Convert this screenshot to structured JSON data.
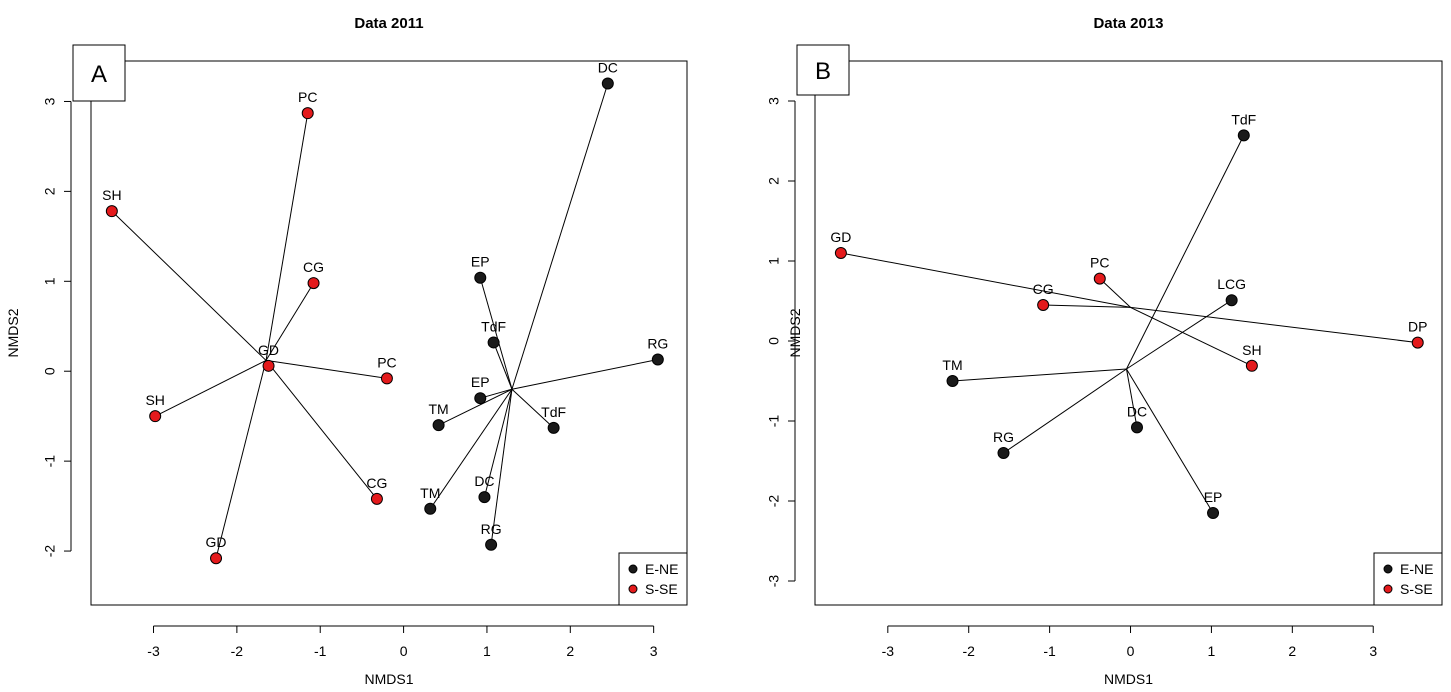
{
  "colors": {
    "E-NE": "#1a1a1a",
    "S-SE": "#e41a1c",
    "line": "#000000"
  },
  "chart_data": [
    {
      "type": "scatter",
      "panel_label": "A",
      "title": "Data 2011",
      "xlabel": "NMDS1",
      "ylabel": "NMDS2",
      "xlim": [
        -3.75,
        3.4
      ],
      "ylim": [
        -2.6,
        3.45
      ],
      "xticks": [
        -3,
        -2,
        -1,
        0,
        1,
        2,
        3
      ],
      "yticks": [
        -2,
        -1,
        0,
        1,
        2,
        3
      ],
      "legend": {
        "position": "bottom-right",
        "entries": [
          "E-NE",
          "S-SE"
        ]
      },
      "centroids": [
        {
          "group": "S-SE",
          "x": -1.65,
          "y": 0.12
        },
        {
          "group": "E-NE",
          "x": 1.3,
          "y": -0.2
        }
      ],
      "points": [
        {
          "label": "SH",
          "x": -3.5,
          "y": 1.78,
          "group": "S-SE",
          "centroid": 0
        },
        {
          "label": "PC",
          "x": -1.15,
          "y": 2.87,
          "group": "S-SE",
          "centroid": 0
        },
        {
          "label": "CG",
          "x": -1.08,
          "y": 0.98,
          "group": "S-SE",
          "centroid": 0
        },
        {
          "label": "GD",
          "x": -1.62,
          "y": 0.06,
          "group": "S-SE",
          "centroid": 0
        },
        {
          "label": "PC",
          "x": -0.2,
          "y": -0.08,
          "group": "S-SE",
          "centroid": 0
        },
        {
          "label": "SH",
          "x": -2.98,
          "y": -0.5,
          "group": "S-SE",
          "centroid": 0
        },
        {
          "label": "CG",
          "x": -0.32,
          "y": -1.42,
          "group": "S-SE",
          "centroid": 0
        },
        {
          "label": "GD",
          "x": -2.25,
          "y": -2.08,
          "group": "S-SE",
          "centroid": 0
        },
        {
          "label": "DC",
          "x": 2.45,
          "y": 3.2,
          "group": "E-NE",
          "centroid": 1
        },
        {
          "label": "EP",
          "x": 0.92,
          "y": 1.04,
          "group": "E-NE",
          "centroid": 1
        },
        {
          "label": "TdF",
          "x": 1.08,
          "y": 0.32,
          "group": "E-NE",
          "centroid": 1
        },
        {
          "label": "RG",
          "x": 3.05,
          "y": 0.13,
          "group": "E-NE",
          "centroid": 1
        },
        {
          "label": "EP",
          "x": 0.92,
          "y": -0.3,
          "group": "E-NE",
          "centroid": 1
        },
        {
          "label": "TM",
          "x": 0.42,
          "y": -0.6,
          "group": "E-NE",
          "centroid": 1
        },
        {
          "label": "TdF",
          "x": 1.8,
          "y": -0.63,
          "group": "E-NE",
          "centroid": 1
        },
        {
          "label": "DC",
          "x": 0.97,
          "y": -1.4,
          "group": "E-NE",
          "centroid": 1
        },
        {
          "label": "TM",
          "x": 0.32,
          "y": -1.53,
          "group": "E-NE",
          "centroid": 1
        },
        {
          "label": "RG",
          "x": 1.05,
          "y": -1.93,
          "group": "E-NE",
          "centroid": 1
        }
      ]
    },
    {
      "type": "scatter",
      "panel_label": "B",
      "title": "Data 2013",
      "xlabel": "NMDS1",
      "ylabel": "NMDS2",
      "xlim": [
        -3.9,
        3.85
      ],
      "ylim": [
        -3.3,
        3.5
      ],
      "xticks": [
        -3,
        -2,
        -1,
        0,
        1,
        2,
        3
      ],
      "yticks": [
        -3,
        -2,
        -1,
        0,
        1,
        2,
        3
      ],
      "legend": {
        "position": "bottom-right",
        "entries": [
          "E-NE",
          "S-SE"
        ]
      },
      "centroids": [
        {
          "group": "S-SE",
          "x": 0.0,
          "y": 0.42
        },
        {
          "group": "E-NE",
          "x": -0.05,
          "y": -0.35
        }
      ],
      "points": [
        {
          "label": "GD",
          "x": -3.58,
          "y": 1.1,
          "group": "S-SE",
          "centroid": 0
        },
        {
          "label": "PC",
          "x": -0.38,
          "y": 0.78,
          "group": "S-SE",
          "centroid": 0
        },
        {
          "label": "CG",
          "x": -1.08,
          "y": 0.45,
          "group": "S-SE",
          "centroid": 0
        },
        {
          "label": "SH",
          "x": 1.5,
          "y": -0.31,
          "group": "S-SE",
          "centroid": 0
        },
        {
          "label": "DP",
          "x": 3.55,
          "y": -0.02,
          "group": "S-SE",
          "centroid": 0
        },
        {
          "label": "TdF",
          "x": 1.4,
          "y": 2.57,
          "group": "E-NE",
          "centroid": 1
        },
        {
          "label": "LCG",
          "x": 1.25,
          "y": 0.51,
          "group": "E-NE",
          "centroid": 1
        },
        {
          "label": "TM",
          "x": -2.2,
          "y": -0.5,
          "group": "E-NE",
          "centroid": 1
        },
        {
          "label": "DC",
          "x": 0.08,
          "y": -1.08,
          "group": "E-NE",
          "centroid": 1
        },
        {
          "label": "RG",
          "x": -1.57,
          "y": -1.4,
          "group": "E-NE",
          "centroid": 1
        },
        {
          "label": "EP",
          "x": 1.02,
          "y": -2.15,
          "group": "E-NE",
          "centroid": 1
        }
      ]
    }
  ]
}
